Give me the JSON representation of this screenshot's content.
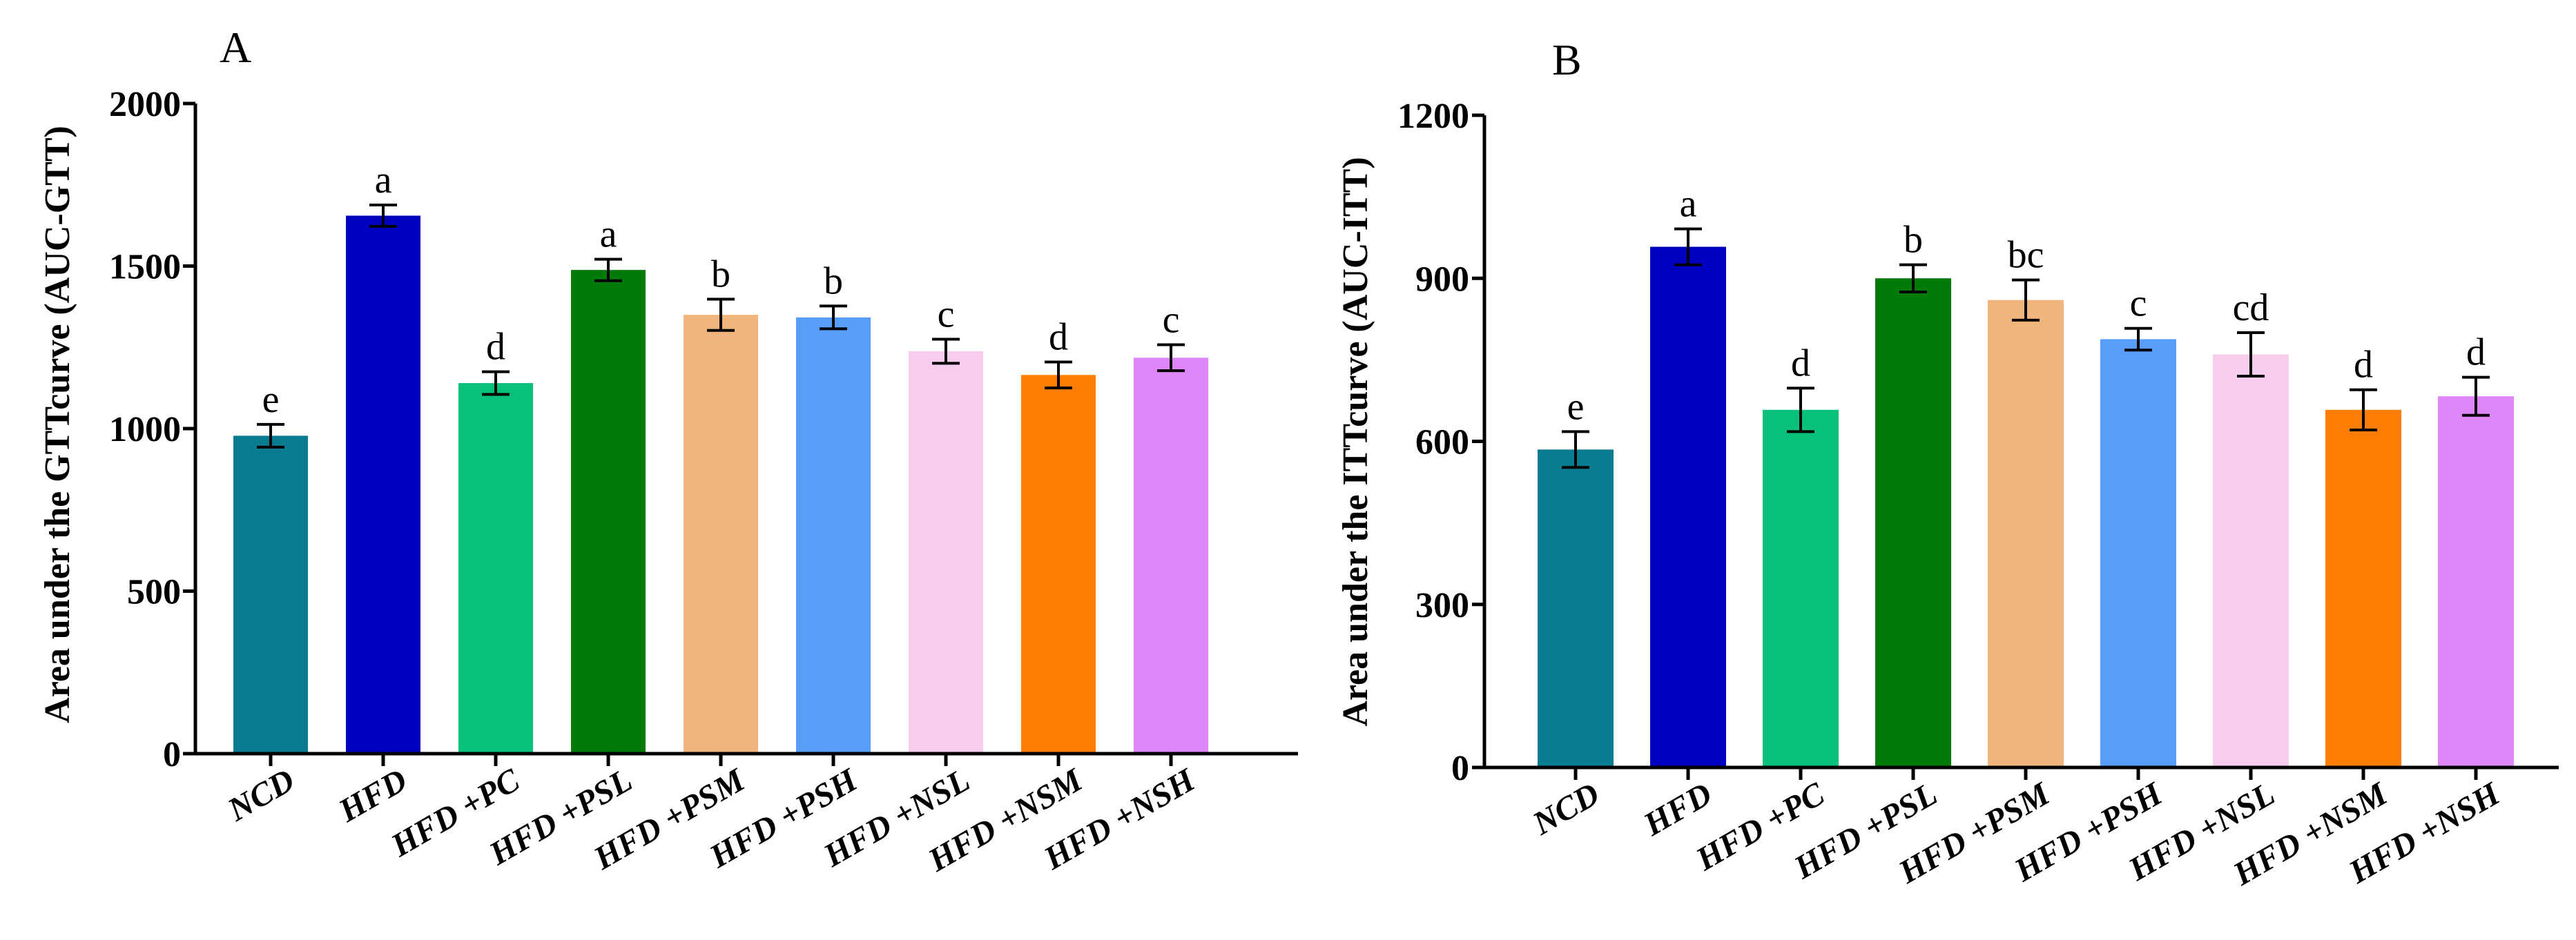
{
  "chart_data": [
    {
      "type": "bar",
      "panel": "A",
      "ylabel": "Area under the GTTcurve (AUC-GTT)",
      "ylim": [
        0,
        2000
      ],
      "yticks": [
        0,
        500,
        1000,
        1500,
        2000
      ],
      "categories": [
        "NCD",
        "HFD",
        "HFD +PC",
        "HFD +PSL",
        "HFD +PSM",
        "HFD +PSH",
        "HFD +NSL",
        "HFD +NSM",
        "HFD +NSH"
      ],
      "values": [
        978,
        1655,
        1140,
        1488,
        1350,
        1342,
        1238,
        1165,
        1218
      ],
      "errors": [
        35,
        33,
        35,
        33,
        48,
        35,
        37,
        40,
        40
      ],
      "significance": [
        "e",
        "a",
        "d",
        "a",
        "b",
        "b",
        "c",
        "d",
        "c"
      ],
      "colors": [
        "#097c92",
        "#0000c1",
        "#07c07a",
        "#007a08",
        "#efb57d",
        "#569efa",
        "#f7cced",
        "#ff7d04",
        "#df86f9"
      ]
    },
    {
      "type": "bar",
      "panel": "B",
      "ylabel": "Area under the ITTcurve (AUC-ITT)",
      "ylim": [
        0,
        1200
      ],
      "yticks": [
        0,
        300,
        600,
        900,
        1200
      ],
      "categories": [
        "NCD",
        "HFD",
        "HFD +PC",
        "HFD +PSL",
        "HFD +PSM",
        "HFD +PSH",
        "HFD +NSL",
        "HFD +NSM",
        "HFD +NSH"
      ],
      "values": [
        585,
        958,
        658,
        900,
        860,
        788,
        760,
        658,
        683
      ],
      "errors": [
        33,
        33,
        40,
        25,
        37,
        20,
        40,
        37,
        35
      ],
      "significance": [
        "e",
        "a",
        "d",
        "b",
        "bc",
        "c",
        "cd",
        "d",
        "d"
      ],
      "colors": [
        "#097c92",
        "#0000c1",
        "#07c07a",
        "#007a08",
        "#efb57d",
        "#569efa",
        "#f7cced",
        "#ff7d04",
        "#df86f9"
      ]
    }
  ]
}
